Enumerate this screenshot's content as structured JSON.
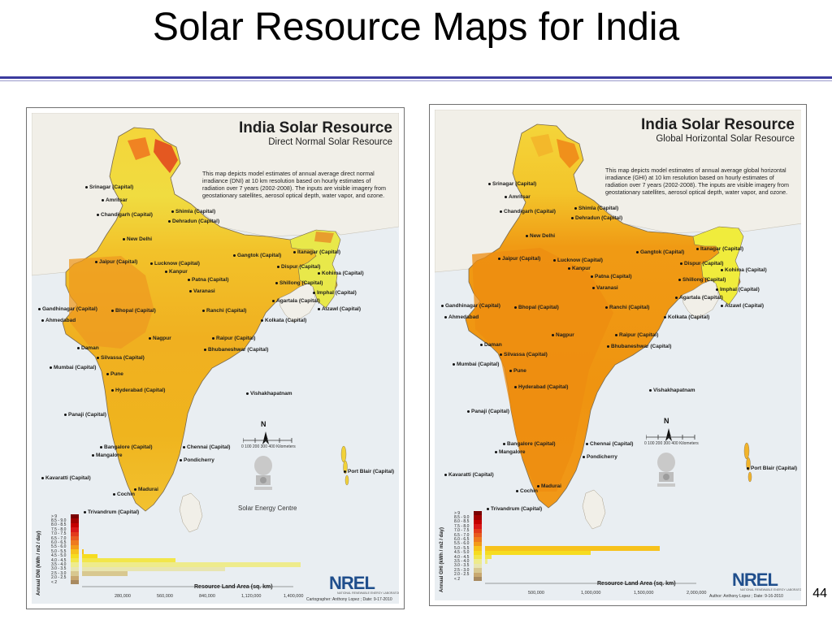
{
  "slide": {
    "title": "Solar Resource Maps for India",
    "page_number": "44"
  },
  "maps": [
    {
      "title": "India Solar Resource",
      "subtitle": "Direct Normal Solar Resource",
      "description": "This map depicts model estimates of annual average direct normal irradiance (DNI) at 10 km resolution based on hourly estimates of radiation over 7 years (2002-2008).  The inputs are visible imagery from geostationary satellites, aerosol optical depth, water vapor, and ozone.",
      "cities": [
        "Srinagar (Capital)",
        "Amritsar",
        "Shimla (Capital)",
        "Chandigarh (Capital)",
        "Dehradun (Capital)",
        "New Delhi",
        "Gangtok (Capital)",
        "Itanagar (Capital)",
        "Jaipur (Capital)",
        "Lucknow (Capital)",
        "Kanpur",
        "Dispur (Capital)",
        "Kohima (Capital)",
        "Patna (Capital)",
        "Shillong (Capital)",
        "Varanasi",
        "Imphal (Capital)",
        "Agartala (Capital)",
        "Gandhinagar (Capital)",
        "Bhopal (Capital)",
        "Ranchi (Capital)",
        "Aizawl (Capital)",
        "Ahmedabad",
        "Kolkata (Capital)",
        "Nagpur",
        "Raipur (Capital)",
        "Daman",
        "Bhubaneshwar (Capital)",
        "Silvassa (Capital)",
        "Mumbai (Capital)",
        "Pune",
        "Hyderabad (Capital)",
        "Vishakhapatnam",
        "Panaji (Capital)",
        "Bangalore (Capital)",
        "Chennai (Capital)",
        "Mangalore",
        "Pondicherry",
        "Port Blair (Capital)",
        "Kavaratti (Capital)",
        "Madurai",
        "Cochin",
        "Trivandrum (Capital)"
      ],
      "scale_label": "0    100   200   300   400 Kilometers",
      "north_label": "N",
      "emblem_caption": "Solar Energy Centre",
      "legend_title": "Annual DNI (kWh / m2 / day)",
      "legend_classes": [
        "> 9",
        "8.5 - 9.0",
        "8.0 - 8.5",
        "7.5 - 8.0",
        "7.0 - 7.5",
        "6.5 - 7.0",
        "6.0 - 6.5",
        "5.5 - 6.0",
        "5.0 - 5.5",
        "4.5 - 5.0",
        "4.0 - 4.5",
        "3.5 - 4.0",
        "3.0 - 3.5",
        "2.5 - 3.0",
        "2.0 - 2.5",
        "< 2"
      ],
      "legend_colors": [
        "#7a0000",
        "#a00000",
        "#c40000",
        "#d81818",
        "#e23a1c",
        "#e85a20",
        "#ee7a20",
        "#f39a1a",
        "#f7c21c",
        "#f6dc20",
        "#f2e64a",
        "#eeeb8c",
        "#e8e5b0",
        "#d8c890",
        "#c8a870",
        "#a88a60"
      ],
      "area_values_sq_km": [
        0,
        0,
        0,
        0,
        0,
        0,
        0,
        0,
        10000,
        100000,
        620000,
        1450000,
        950000,
        300000,
        0,
        0
      ],
      "area_max": 1400000,
      "area_ticks": [
        "280,000",
        "560,000",
        "840,000",
        "1,120,000",
        "1,400,000"
      ],
      "area_axis_title": "Resource Land Area (sq. km)",
      "logo": "NREL",
      "logo_sub": "NATIONAL RENEWABLE ENERGY LABORATORY",
      "credit": "Cartographer: Anthony Lopez ; Date: 9-17-2010"
    },
    {
      "title": "India Solar Resource",
      "subtitle": "Global Horizontal Solar Resource",
      "description": "This map depicts model estimates of annual average global horizontal irradiance (GHI) at 10 km resolution based on hourly estimates of radiation over 7 years (2002-2008).  The inputs are visible imagery from geostationary satellites, aerosol optical depth, water vapor, and ozone.",
      "cities": [
        "Srinagar (Capital)",
        "Amritsar",
        "Shimla (Capital)",
        "Chandigarh (Capital)",
        "Dehradun (Capital)",
        "New Delhi",
        "Gangtok (Capital)",
        "Itanagar (Capital)",
        "Jaipur (Capital)",
        "Lucknow (Capital)",
        "Kanpur",
        "Dispur (Capital)",
        "Kohima (Capital)",
        "Patna (Capital)",
        "Shillong (Capital)",
        "Varanasi",
        "Imphal (Capital)",
        "Agartala (Capital)",
        "Gandhinagar (Capital)",
        "Bhopal (Capital)",
        "Ranchi (Capital)",
        "Aizawl (Capital)",
        "Ahmedabad",
        "Kolkata (Capital)",
        "Nagpur",
        "Raipur (Capital)",
        "Daman",
        "Bhubaneshwar (Capital)",
        "Silvassa (Capital)",
        "Mumbai (Capital)",
        "Pune",
        "Hyderabad (Capital)",
        "Vishakhapatnam",
        "Panaji (Capital)",
        "Bangalore (Capital)",
        "Chennai (Capital)",
        "Mangalore",
        "Pondicherry",
        "Port Blair (Capital)",
        "Kavaratti (Capital)",
        "Madurai",
        "Cochin",
        "Trivandrum (Capital)"
      ],
      "scale_label": "0    100   200   300   400 Kilometers",
      "north_label": "N",
      "emblem_caption": "",
      "legend_title": "Annual GHI (kWh / m2 / day)",
      "legend_classes": [
        "> 9",
        "8.5 - 9.0",
        "8.0 - 8.5",
        "7.5 - 8.0",
        "7.0 - 7.5",
        "6.5 - 7.0",
        "6.0 - 6.5",
        "5.5 - 6.0",
        "5.0 - 5.5",
        "4.5 - 5.0",
        "4.0 - 4.5",
        "3.5 - 4.0",
        "3.0 - 3.5",
        "2.5 - 3.0",
        "2.0 - 2.5",
        "< 2"
      ],
      "legend_colors": [
        "#7a0000",
        "#a00000",
        "#c40000",
        "#d81818",
        "#e23a1c",
        "#e85a20",
        "#ee7a20",
        "#f39a1a",
        "#f7c21c",
        "#f6dc20",
        "#f2e64a",
        "#eeeb8c",
        "#e8e5b0",
        "#d8c890",
        "#c8a870",
        "#a88a60"
      ],
      "area_values_sq_km": [
        0,
        0,
        0,
        0,
        0,
        0,
        0,
        0,
        1650000,
        1000000,
        60000,
        20000,
        0,
        0,
        0,
        0
      ],
      "area_max": 2000000,
      "area_ticks": [
        "500,000",
        "1,000,000",
        "1,500,000",
        "2,000,000"
      ],
      "area_axis_title": "Resource Land Area (sq. km)",
      "logo": "NREL",
      "logo_sub": "NATIONAL RENEWABLE ENERGY LABORATORY",
      "credit": "Author: Anthony Lopez ; Date: 9-16-2010"
    }
  ]
}
